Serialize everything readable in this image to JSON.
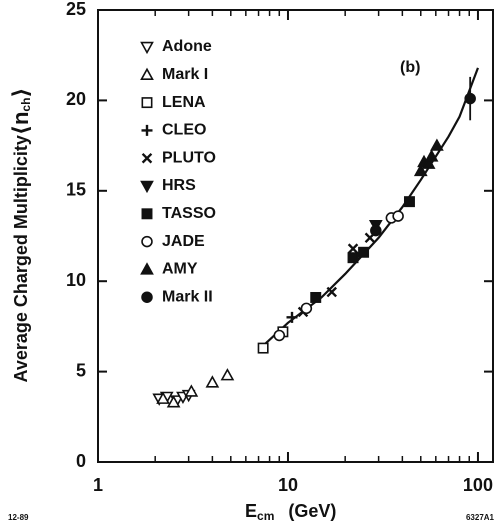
{
  "chart_data": {
    "type": "scatter",
    "y_label": "Average Charged Multiplicity",
    "y_label_symbol": "⟨n",
    "y_label_subscript": "ch",
    "y_label_close": "⟩",
    "x_label": "E",
    "x_label_subscript": "cm",
    "x_label_unit": "(GeV)",
    "annotation": "(b)",
    "footer_left": "12-89",
    "footer_right": "6327A1",
    "x_scale": "log",
    "xlim": [
      1,
      120
    ],
    "xticks": [
      1,
      10,
      100
    ],
    "xminorticks": [
      2,
      3,
      4,
      5,
      6,
      7,
      8,
      9,
      20,
      30,
      40,
      50,
      60,
      70,
      80,
      90
    ],
    "ylim": [
      0,
      25
    ],
    "yticks": [
      0,
      5,
      10,
      15,
      20,
      25
    ],
    "color": "#111111",
    "series": [
      {
        "name": "Adone",
        "marker": "triangle-down-open",
        "x": [
          2.1,
          2.3,
          2.6,
          2.8,
          3.0
        ],
        "values": [
          3.5,
          3.6,
          3.4,
          3.6,
          3.7
        ]
      },
      {
        "name": "Mark I",
        "marker": "triangle-up-open",
        "x": [
          2.2,
          2.5,
          3.1,
          4.0,
          4.8
        ],
        "values": [
          3.5,
          3.3,
          3.9,
          4.4,
          4.8
        ]
      },
      {
        "name": "LENA",
        "marker": "square-open",
        "x": [
          7.4,
          9.4
        ],
        "values": [
          6.3,
          7.2
        ]
      },
      {
        "name": "CLEO",
        "marker": "plus",
        "x": [
          10.5
        ],
        "values": [
          8.0
        ]
      },
      {
        "name": "PLUTO",
        "marker": "cross",
        "x": [
          12,
          17,
          22,
          27
        ],
        "values": [
          8.3,
          9.4,
          11.8,
          12.4
        ]
      },
      {
        "name": "HRS",
        "marker": "triangle-down-filled",
        "x": [
          29
        ],
        "values": [
          13.1
        ]
      },
      {
        "name": "TASSO",
        "marker": "square-filled",
        "x": [
          14,
          22,
          25,
          43.6
        ],
        "values": [
          9.1,
          11.3,
          11.6,
          14.4
        ]
      },
      {
        "name": "JADE",
        "marker": "circle-open",
        "x": [
          9.0,
          12.5,
          35,
          38
        ],
        "values": [
          7.0,
          8.5,
          13.5,
          13.6
        ]
      },
      {
        "name": "AMY",
        "marker": "triangle-up-filled",
        "x": [
          50,
          52,
          55,
          57,
          60.8
        ],
        "values": [
          16.1,
          16.6,
          16.5,
          16.9,
          17.5
        ]
      },
      {
        "name": "Mark II",
        "marker": "circle-filled",
        "x": [
          29,
          91
        ],
        "values": [
          12.8,
          20.1
        ],
        "errors": [
          null,
          1.2
        ]
      }
    ],
    "fit": {
      "x": [
        7,
        10,
        15,
        20,
        30,
        40,
        50,
        60,
        70,
        80,
        100
      ],
      "values": [
        6.2,
        7.7,
        9.1,
        10.4,
        12.4,
        14.1,
        15.6,
        16.9,
        18.0,
        19.1,
        21.8
      ]
    }
  }
}
